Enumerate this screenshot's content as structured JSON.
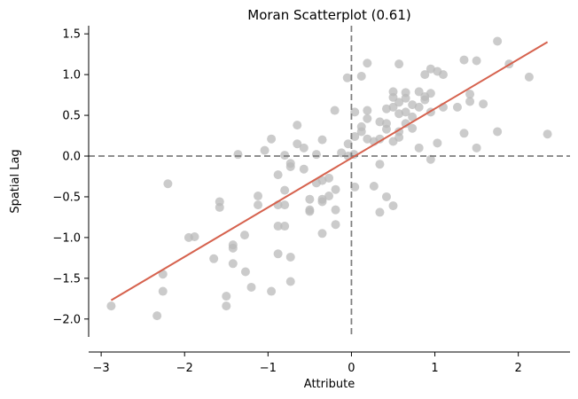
{
  "chart_data": {
    "type": "scatter",
    "title": "Moran Scatterplot (0.61)",
    "xlabel": "Attribute",
    "ylabel": "Spatial Lag",
    "xlim": [
      -3.15,
      2.62
    ],
    "ylim": [
      -2.22,
      1.6
    ],
    "x_ticks": [
      -3,
      -2,
      -1,
      0,
      1,
      2
    ],
    "y_ticks": [
      -2.0,
      -1.5,
      -1.0,
      -0.5,
      0.0,
      0.5,
      1.0,
      1.5
    ],
    "x_tick_labels": [
      "−3",
      "−2",
      "−1",
      "0",
      "1",
      "2"
    ],
    "y_tick_labels": [
      "−2.0",
      "−1.5",
      "−1.0",
      "−0.5",
      "0.0",
      "0.5",
      "1.0",
      "1.5"
    ],
    "grid": false,
    "reference_lines": {
      "x": 0,
      "y": 0,
      "style": "dashed",
      "color": "#808080"
    },
    "colors": {
      "points": "#bababa",
      "fit_line": "#d6624e",
      "reference": "#7f7f7f"
    },
    "fit_line": {
      "x": [
        -2.88,
        2.35
      ],
      "y": [
        -1.77,
        1.4
      ]
    },
    "points": [
      {
        "x": -2.88,
        "y": -1.84
      },
      {
        "x": -2.33,
        "y": -1.96
      },
      {
        "x": -2.26,
        "y": -1.66
      },
      {
        "x": -2.26,
        "y": -1.45
      },
      {
        "x": -2.2,
        "y": -0.34
      },
      {
        "x": -1.95,
        "y": -1.0
      },
      {
        "x": -1.88,
        "y": -0.99
      },
      {
        "x": -1.65,
        "y": -1.26
      },
      {
        "x": -1.58,
        "y": -0.56
      },
      {
        "x": -1.58,
        "y": -0.63
      },
      {
        "x": -1.5,
        "y": -1.72
      },
      {
        "x": -1.5,
        "y": -1.84
      },
      {
        "x": -1.42,
        "y": -1.09
      },
      {
        "x": -1.42,
        "y": -1.13
      },
      {
        "x": -1.42,
        "y": -1.32
      },
      {
        "x": -1.36,
        "y": 0.02
      },
      {
        "x": -1.28,
        "y": -0.97
      },
      {
        "x": -1.27,
        "y": -1.42
      },
      {
        "x": -1.2,
        "y": -1.61
      },
      {
        "x": -1.12,
        "y": -0.49
      },
      {
        "x": -1.12,
        "y": -0.6
      },
      {
        "x": -1.04,
        "y": 0.07
      },
      {
        "x": -0.96,
        "y": 0.21
      },
      {
        "x": -0.96,
        "y": -1.66
      },
      {
        "x": -0.88,
        "y": -0.23
      },
      {
        "x": -0.88,
        "y": -0.6
      },
      {
        "x": -0.88,
        "y": -0.86
      },
      {
        "x": -0.88,
        "y": -1.2
      },
      {
        "x": -0.8,
        "y": -0.42
      },
      {
        "x": -0.8,
        "y": 0.01
      },
      {
        "x": -0.8,
        "y": -0.6
      },
      {
        "x": -0.8,
        "y": -0.86
      },
      {
        "x": -0.73,
        "y": -0.09
      },
      {
        "x": -0.73,
        "y": -0.13
      },
      {
        "x": -0.73,
        "y": -1.24
      },
      {
        "x": -0.73,
        "y": -1.54
      },
      {
        "x": -0.65,
        "y": 0.38
      },
      {
        "x": -0.65,
        "y": 0.15
      },
      {
        "x": -0.57,
        "y": 0.1
      },
      {
        "x": -0.57,
        "y": -0.16
      },
      {
        "x": -0.5,
        "y": -0.53
      },
      {
        "x": -0.5,
        "y": -0.66
      },
      {
        "x": -0.5,
        "y": -0.68
      },
      {
        "x": -0.42,
        "y": 0.02
      },
      {
        "x": -0.42,
        "y": -0.33
      },
      {
        "x": -0.35,
        "y": 0.2
      },
      {
        "x": -0.35,
        "y": -0.3
      },
      {
        "x": -0.35,
        "y": -0.53
      },
      {
        "x": -0.35,
        "y": -0.56
      },
      {
        "x": -0.35,
        "y": -0.95
      },
      {
        "x": -0.27,
        "y": -0.27
      },
      {
        "x": -0.27,
        "y": -0.49
      },
      {
        "x": -0.2,
        "y": 0.56
      },
      {
        "x": -0.19,
        "y": -0.41
      },
      {
        "x": -0.19,
        "y": -0.66
      },
      {
        "x": -0.19,
        "y": -0.84
      },
      {
        "x": -0.12,
        "y": 0.04
      },
      {
        "x": -0.05,
        "y": 0.96
      },
      {
        "x": -0.04,
        "y": 0.15
      },
      {
        "x": -0.04,
        "y": 0.0
      },
      {
        "x": 0.03,
        "y": 0.02
      },
      {
        "x": 0.04,
        "y": 0.24
      },
      {
        "x": 0.04,
        "y": 0.54
      },
      {
        "x": 0.04,
        "y": -0.38
      },
      {
        "x": 0.12,
        "y": 0.98
      },
      {
        "x": 0.12,
        "y": 0.36
      },
      {
        "x": 0.12,
        "y": 0.3
      },
      {
        "x": 0.19,
        "y": 1.14
      },
      {
        "x": 0.19,
        "y": 0.56
      },
      {
        "x": 0.19,
        "y": 0.46
      },
      {
        "x": 0.19,
        "y": 0.21
      },
      {
        "x": 0.27,
        "y": -0.37
      },
      {
        "x": 0.27,
        "y": 0.18
      },
      {
        "x": 0.34,
        "y": 0.42
      },
      {
        "x": 0.34,
        "y": 0.21
      },
      {
        "x": 0.34,
        "y": -0.1
      },
      {
        "x": 0.34,
        "y": -0.69
      },
      {
        "x": 0.42,
        "y": 0.58
      },
      {
        "x": 0.42,
        "y": 0.4
      },
      {
        "x": 0.42,
        "y": 0.33
      },
      {
        "x": 0.42,
        "y": -0.5
      },
      {
        "x": 0.5,
        "y": 0.79
      },
      {
        "x": 0.5,
        "y": 0.72
      },
      {
        "x": 0.5,
        "y": 0.6
      },
      {
        "x": 0.5,
        "y": 0.18
      },
      {
        "x": 0.5,
        "y": -0.61
      },
      {
        "x": 0.57,
        "y": 1.13
      },
      {
        "x": 0.57,
        "y": 0.66
      },
      {
        "x": 0.57,
        "y": 0.52
      },
      {
        "x": 0.57,
        "y": 0.3
      },
      {
        "x": 0.57,
        "y": 0.23
      },
      {
        "x": 0.65,
        "y": 0.78
      },
      {
        "x": 0.65,
        "y": 0.71
      },
      {
        "x": 0.65,
        "y": 0.54
      },
      {
        "x": 0.65,
        "y": 0.4
      },
      {
        "x": 0.73,
        "y": 0.63
      },
      {
        "x": 0.73,
        "y": 0.48
      },
      {
        "x": 0.73,
        "y": 0.34
      },
      {
        "x": 0.81,
        "y": 0.79
      },
      {
        "x": 0.81,
        "y": 0.6
      },
      {
        "x": 0.81,
        "y": 0.1
      },
      {
        "x": 0.88,
        "y": 1.0
      },
      {
        "x": 0.88,
        "y": 0.73
      },
      {
        "x": 0.88,
        "y": 0.69
      },
      {
        "x": 0.95,
        "y": 1.07
      },
      {
        "x": 0.95,
        "y": 0.77
      },
      {
        "x": 0.95,
        "y": 0.54
      },
      {
        "x": 0.95,
        "y": -0.04
      },
      {
        "x": 1.03,
        "y": 1.04
      },
      {
        "x": 1.03,
        "y": 0.16
      },
      {
        "x": 1.1,
        "y": 1.0
      },
      {
        "x": 1.1,
        "y": 0.6
      },
      {
        "x": 1.27,
        "y": 0.6
      },
      {
        "x": 1.35,
        "y": 1.18
      },
      {
        "x": 1.35,
        "y": 0.28
      },
      {
        "x": 1.42,
        "y": 0.76
      },
      {
        "x": 1.42,
        "y": 0.67
      },
      {
        "x": 1.5,
        "y": 1.17
      },
      {
        "x": 1.5,
        "y": 0.1
      },
      {
        "x": 1.58,
        "y": 0.64
      },
      {
        "x": 1.75,
        "y": 1.41
      },
      {
        "x": 1.75,
        "y": 0.3
      },
      {
        "x": 1.89,
        "y": 1.13
      },
      {
        "x": 2.13,
        "y": 0.97
      },
      {
        "x": 2.35,
        "y": 0.27
      }
    ]
  }
}
